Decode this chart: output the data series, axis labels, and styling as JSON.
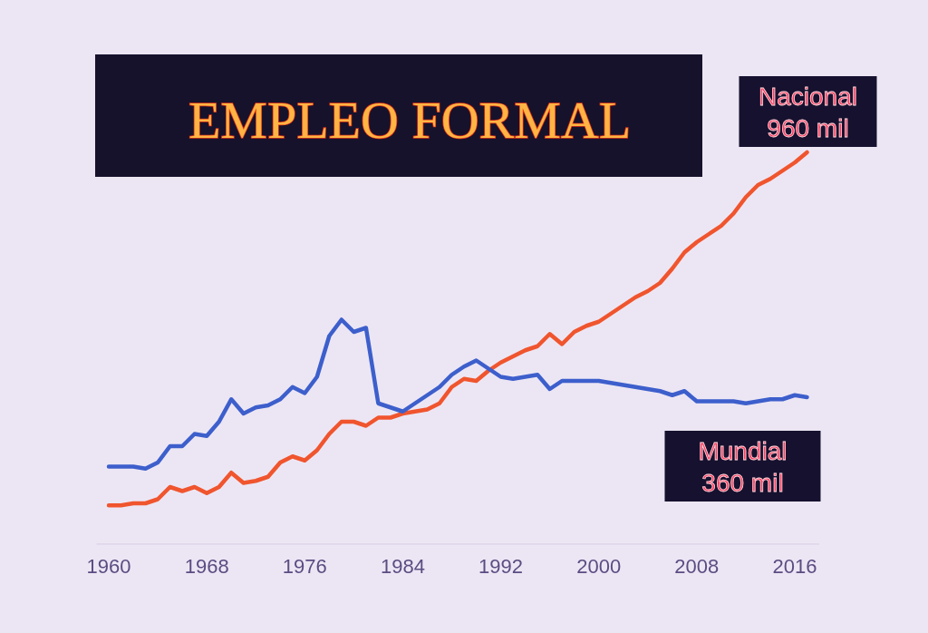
{
  "chart_data": {
    "type": "line",
    "title": "EMPLEO FORMAL",
    "x": [
      1960,
      1961,
      1962,
      1963,
      1964,
      1965,
      1966,
      1967,
      1968,
      1969,
      1970,
      1971,
      1972,
      1973,
      1974,
      1975,
      1976,
      1977,
      1978,
      1979,
      1980,
      1981,
      1982,
      1983,
      1984,
      1985,
      1986,
      1987,
      1988,
      1989,
      1990,
      1991,
      1992,
      1993,
      1994,
      1995,
      1996,
      1997,
      1998,
      1999,
      2000,
      2001,
      2002,
      2003,
      2004,
      2005,
      2006,
      2007,
      2008,
      2009,
      2010,
      2011,
      2012,
      2013,
      2014,
      2015,
      2016,
      2017
    ],
    "xlim": [
      1959,
      2018
    ],
    "xticks": [
      1960,
      1968,
      1976,
      1984,
      1992,
      2000,
      2008,
      2016
    ],
    "tick_labels": "x",
    "series": [
      {
        "name": "Nacional",
        "color": "#f0552e",
        "values": [
          95,
          95,
          100,
          100,
          110,
          140,
          130,
          140,
          125,
          140,
          175,
          150,
          155,
          165,
          200,
          215,
          205,
          230,
          270,
          300,
          300,
          290,
          310,
          310,
          320,
          325,
          330,
          345,
          385,
          405,
          400,
          425,
          445,
          460,
          475,
          485,
          515,
          490,
          520,
          535,
          545,
          565,
          585,
          605,
          620,
          640,
          675,
          715,
          740,
          760,
          780,
          810,
          850,
          880,
          895,
          915,
          935,
          960
        ],
        "value_labels": [
          null,
          null,
          null,
          null,
          null,
          null,
          null,
          null,
          null,
          null,
          null,
          null,
          null,
          null,
          null,
          null,
          null,
          null,
          null,
          null,
          null,
          null,
          null,
          null,
          null,
          null,
          null,
          null,
          null,
          null,
          null,
          null,
          null,
          null,
          null,
          null,
          null,
          null,
          null,
          null,
          null,
          null,
          null,
          null,
          null,
          null,
          null,
          null,
          null,
          null,
          null,
          null,
          null,
          null,
          null,
          null,
          null,
          "960 mil"
        ]
      },
      {
        "name": "Mundial",
        "color": "#3d5fcc",
        "values": [
          190,
          190,
          190,
          185,
          200,
          240,
          240,
          270,
          265,
          300,
          355,
          320,
          335,
          340,
          355,
          385,
          370,
          410,
          510,
          550,
          520,
          530,
          345,
          335,
          325,
          345,
          365,
          385,
          415,
          435,
          450,
          430,
          410,
          405,
          410,
          415,
          380,
          400,
          400,
          400,
          400,
          395,
          390,
          385,
          380,
          375,
          365,
          375,
          350,
          350,
          350,
          350,
          345,
          350,
          355,
          355,
          365,
          360
        ],
        "value_labels": [
          null,
          null,
          null,
          null,
          null,
          null,
          null,
          null,
          null,
          null,
          null,
          null,
          null,
          null,
          null,
          null,
          null,
          null,
          null,
          null,
          null,
          null,
          null,
          null,
          null,
          null,
          null,
          null,
          null,
          null,
          null,
          null,
          null,
          null,
          null,
          null,
          null,
          null,
          null,
          null,
          null,
          null,
          null,
          null,
          null,
          null,
          null,
          null,
          null,
          null,
          null,
          null,
          null,
          null,
          null,
          null,
          null,
          "360 mil"
        ]
      }
    ]
  }
}
